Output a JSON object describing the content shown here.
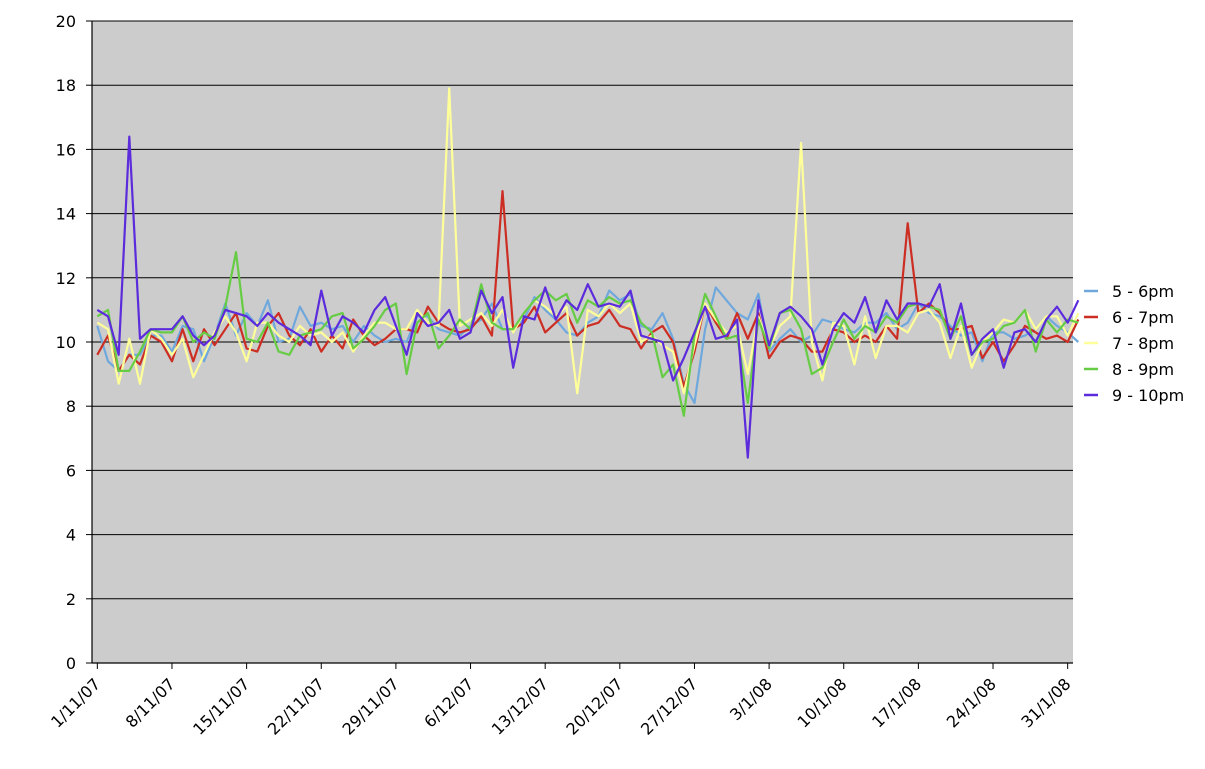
{
  "chart_data": {
    "type": "line",
    "title": "",
    "xlabel": "",
    "ylabel": "",
    "ylim": [
      0,
      20
    ],
    "y_ticks": [
      "0",
      "2",
      "4",
      "6",
      "8",
      "10",
      "12",
      "14",
      "16",
      "18",
      "20"
    ],
    "x_tick_labels": [
      "1/11/07",
      "8/11/07",
      "15/11/07",
      "22/11/07",
      "29/11/07",
      "6/12/07",
      "13/12/07",
      "20/12/07",
      "27/12/07",
      "3/1/08",
      "10/1/08",
      "17/1/08",
      "24/1/08",
      "31/1/08"
    ],
    "x_start": "1/11/07",
    "x_end": "31/1/08",
    "grid": "horizontal",
    "background": "#cccccc",
    "legend_position": "right",
    "series": [
      {
        "name": "5 - 6pm",
        "color": "#6fa8dc",
        "values": [
          10.5,
          9.4,
          9.1,
          9.6,
          9.6,
          10.2,
          10.2,
          9.7,
          10.5,
          10.4,
          9.4,
          10.2,
          11.2,
          10.2,
          10.9,
          10.5,
          11.3,
          10.0,
          10.1,
          11.1,
          10.5,
          10.6,
          10.4,
          10.5,
          10.0,
          10.5,
          10.2,
          10.0,
          10.1,
          10.0,
          10.8,
          10.8,
          10.4,
          10.3,
          10.2,
          10.5,
          10.7,
          11.2,
          10.4,
          10.4,
          10.7,
          11.4,
          11.0,
          10.7,
          10.3,
          10.2,
          10.6,
          10.8,
          11.6,
          11.3,
          11.5,
          10.5,
          10.4,
          10.9,
          10.1,
          8.7,
          8.1,
          10.4,
          11.7,
          11.3,
          10.9,
          10.7,
          11.5,
          9.7,
          10.1,
          10.4,
          10.0,
          10.2,
          10.7,
          10.6,
          10.4,
          10.3,
          10.6,
          10.6,
          10.9,
          10.4,
          10.6,
          11.2,
          10.9,
          10.8,
          10.5,
          10.2,
          10.3,
          9.4,
          10.3,
          10.3,
          10.1,
          10.2,
          10.4,
          10.8,
          10.5,
          10.3,
          10.0
        ]
      },
      {
        "name": "6 - 7pm",
        "color": "#cc2e24",
        "values": [
          9.6,
          10.2,
          9.1,
          9.6,
          9.3,
          10.2,
          10.0,
          9.4,
          10.4,
          9.4,
          10.4,
          9.9,
          10.4,
          10.9,
          9.8,
          9.7,
          10.5,
          10.9,
          10.2,
          9.9,
          10.4,
          9.7,
          10.2,
          9.8,
          10.7,
          10.2,
          9.9,
          10.1,
          10.4,
          10.4,
          10.3,
          11.1,
          10.6,
          10.4,
          10.3,
          10.4,
          10.8,
          10.2,
          14.7,
          10.4,
          10.6,
          11.1,
          10.3,
          10.6,
          10.9,
          10.2,
          10.5,
          10.6,
          11.0,
          10.5,
          10.4,
          9.8,
          10.3,
          10.5,
          10.0,
          8.6,
          9.7,
          11.2,
          10.6,
          10.1,
          10.9,
          10.1,
          10.9,
          9.5,
          10.0,
          10.2,
          10.1,
          9.7,
          9.7,
          10.4,
          10.3,
          10.0,
          10.2,
          10.0,
          10.5,
          10.1,
          13.7,
          10.9,
          11.2,
          10.9,
          10.4,
          10.4,
          10.5,
          9.5,
          10.0,
          9.4,
          9.9,
          10.5,
          10.3,
          10.1,
          10.2,
          10.0,
          10.7
        ]
      },
      {
        "name": "7 - 8pm",
        "color": "#ffff99",
        "values": [
          10.6,
          10.4,
          8.7,
          10.1,
          8.7,
          10.4,
          10.1,
          9.6,
          10.1,
          8.9,
          9.6,
          10.3,
          10.8,
          10.3,
          9.4,
          10.6,
          10.6,
          10.2,
          10.0,
          10.5,
          10.2,
          10.3,
          10.0,
          10.3,
          9.7,
          10.2,
          10.6,
          10.6,
          10.4,
          10.4,
          11.0,
          10.6,
          10.5,
          17.9,
          10.5,
          10.7,
          10.9,
          10.5,
          11.0,
          10.3,
          10.9,
          11.3,
          11.1,
          10.8,
          11.1,
          8.4,
          11.0,
          10.8,
          11.2,
          10.9,
          11.2,
          10.0,
          10.2,
          9.9,
          9.7,
          8.4,
          9.9,
          11.2,
          10.7,
          10.3,
          10.5,
          9.0,
          10.8,
          9.8,
          10.5,
          10.8,
          16.2,
          10.0,
          8.8,
          10.6,
          10.5,
          9.3,
          10.8,
          9.5,
          10.5,
          10.5,
          10.3,
          10.9,
          11.0,
          10.6,
          9.5,
          10.5,
          9.2,
          10.0,
          10.3,
          10.7,
          10.6,
          11.0,
          10.4,
          10.8,
          10.8,
          10.2,
          10.9
        ]
      },
      {
        "name": "8 - 9pm",
        "color": "#66cc44",
        "values": [
          10.8,
          11.0,
          9.1,
          9.1,
          9.7,
          10.4,
          10.3,
          10.3,
          10.8,
          10.0,
          10.3,
          10.1,
          11.1,
          12.8,
          10.1,
          10.0,
          10.6,
          9.7,
          9.6,
          10.2,
          10.3,
          10.4,
          10.8,
          10.9,
          9.8,
          10.1,
          10.5,
          11.0,
          11.2,
          9.0,
          10.6,
          10.9,
          9.8,
          10.2,
          10.7,
          10.4,
          11.8,
          10.6,
          10.4,
          10.4,
          10.9,
          11.3,
          11.6,
          11.3,
          11.5,
          10.6,
          11.3,
          11.1,
          11.4,
          11.2,
          11.3,
          10.6,
          10.3,
          8.9,
          9.3,
          7.7,
          10.2,
          11.5,
          10.8,
          10.1,
          10.2,
          8.1,
          10.7,
          9.8,
          10.9,
          11.0,
          10.4,
          9.0,
          9.2,
          10.0,
          10.7,
          10.1,
          10.5,
          10.3,
          10.8,
          10.6,
          11.1,
          11.2,
          11.1,
          11.0,
          10.1,
          10.8,
          9.6,
          10.0,
          10.1,
          10.5,
          10.6,
          11.0,
          9.7,
          10.7,
          10.3,
          10.7,
          10.6
        ]
      },
      {
        "name": "9 - 10pm",
        "color": "#5b2bdc",
        "values": [
          11.0,
          10.8,
          9.6,
          16.4,
          10.1,
          10.4,
          10.4,
          10.4,
          10.8,
          10.2,
          9.9,
          10.2,
          11.0,
          10.9,
          10.8,
          10.5,
          10.9,
          10.6,
          10.4,
          10.2,
          9.9,
          11.6,
          10.2,
          10.8,
          10.6,
          10.3,
          11.0,
          11.4,
          10.5,
          9.6,
          10.9,
          10.5,
          10.6,
          11.0,
          10.1,
          10.3,
          11.6,
          10.9,
          11.4,
          9.2,
          10.8,
          10.7,
          11.7,
          10.7,
          11.3,
          11.0,
          11.8,
          11.1,
          11.2,
          11.1,
          11.6,
          10.2,
          10.1,
          10.0,
          8.8,
          9.5,
          10.3,
          11.1,
          10.1,
          10.2,
          10.7,
          6.4,
          11.3,
          9.9,
          10.9,
          11.1,
          10.8,
          10.4,
          9.3,
          10.4,
          10.9,
          10.6,
          11.4,
          10.3,
          11.3,
          10.7,
          11.2,
          11.2,
          11.1,
          11.8,
          10.1,
          11.2,
          9.6,
          10.1,
          10.4,
          9.2,
          10.3,
          10.4,
          10.0,
          10.7,
          11.1,
          10.6,
          11.3
        ]
      }
    ]
  }
}
